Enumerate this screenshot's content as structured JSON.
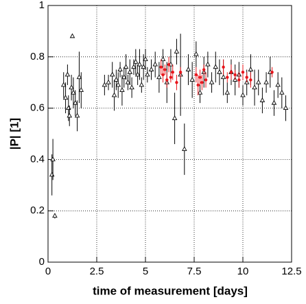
{
  "chart_data": {
    "type": "scatter",
    "xlabel": "time of measurement [days]",
    "ylabel": "|P| [1]",
    "xlim": [
      0,
      12.5
    ],
    "ylim": [
      0,
      1
    ],
    "xticks": [
      0,
      2.5,
      5,
      7.5,
      10,
      12.5
    ],
    "yticks": [
      0,
      0.2,
      0.4,
      0.6,
      0.8,
      1
    ],
    "grid": true,
    "series": [
      {
        "color": "#000000",
        "marker": "open-triangle",
        "x": [
          0.2,
          0.25,
          0.35,
          0.8,
          0.9,
          1.0,
          1.05,
          1.1,
          1.2,
          1.25,
          1.3,
          1.4,
          1.5,
          1.6,
          1.7,
          2.9,
          3.1,
          3.3,
          3.4,
          3.5,
          3.6,
          3.7,
          3.8,
          3.9,
          4.0,
          4.1,
          4.2,
          4.3,
          4.4,
          4.5,
          4.6,
          4.7,
          4.8,
          4.9,
          5.0,
          5.1,
          5.3,
          5.5,
          5.7,
          5.9,
          6.1,
          6.3,
          6.5,
          6.6,
          6.8,
          7.0,
          7.2,
          7.4,
          7.6,
          7.8,
          8.0,
          8.2,
          8.4,
          8.6,
          8.8,
          9.0,
          9.2,
          9.4,
          9.6,
          9.8,
          10.0,
          10.2,
          10.4,
          10.6,
          10.8,
          11.0,
          11.2,
          11.4,
          11.6,
          11.8,
          12.0,
          12.2
        ],
        "values": [
          0.34,
          0.4,
          0.18,
          0.69,
          0.64,
          0.73,
          0.6,
          0.57,
          0.68,
          0.88,
          0.66,
          0.62,
          0.57,
          0.72,
          0.67,
          0.69,
          0.7,
          0.73,
          0.65,
          0.71,
          0.69,
          0.75,
          0.67,
          0.72,
          0.76,
          0.7,
          0.74,
          0.68,
          0.76,
          0.78,
          0.73,
          0.77,
          0.69,
          0.76,
          0.79,
          0.73,
          0.75,
          0.77,
          0.72,
          0.79,
          0.7,
          0.77,
          0.56,
          0.82,
          0.73,
          0.44,
          0.75,
          0.71,
          0.81,
          0.66,
          0.74,
          0.77,
          0.7,
          0.76,
          0.74,
          0.72,
          0.66,
          0.74,
          0.71,
          0.73,
          0.65,
          0.7,
          0.75,
          0.68,
          0.7,
          0.63,
          0.7,
          0.74,
          0.62,
          0.69,
          0.66,
          0.6
        ],
        "errors": [
          0.08,
          0.08,
          0.01,
          0.05,
          0.06,
          0.04,
          0.05,
          0.04,
          0.05,
          0,
          0.06,
          0.05,
          0.06,
          0.1,
          0.07,
          0.04,
          0.03,
          0.05,
          0.06,
          0.04,
          0.05,
          0.03,
          0.06,
          0.04,
          0.05,
          0.03,
          0.05,
          0.04,
          0.03,
          0.05,
          0.04,
          0.06,
          0.03,
          0.05,
          0.04,
          0.03,
          0.04,
          0.05,
          0.06,
          0.04,
          0.08,
          0.06,
          0.1,
          0.05,
          0.16,
          0.1,
          0.06,
          0.07,
          0.05,
          0.04,
          0.06,
          0.05,
          0.04,
          0.06,
          0.05,
          0.07,
          0.04,
          0.05,
          0.06,
          0.05,
          0.04,
          0.05,
          0.06,
          0.07,
          0.05,
          0.05,
          0.04,
          0.06,
          0.05,
          0.05,
          0.06,
          0.05
        ]
      },
      {
        "color": "#e8141a",
        "marker": "filled-dot",
        "x": [
          5.8,
          5.9,
          6.0,
          6.1,
          6.2,
          6.3,
          6.4,
          6.6,
          6.8,
          7.6,
          7.7,
          7.8,
          7.9,
          8.0,
          8.1,
          9.0,
          9.2,
          9.4,
          9.6,
          9.8,
          10.0,
          10.2,
          10.4,
          11.5
        ],
        "values": [
          0.76,
          0.73,
          0.75,
          0.71,
          0.77,
          0.72,
          0.74,
          0.7,
          0.74,
          0.73,
          0.69,
          0.72,
          0.7,
          0.75,
          0.71,
          0.76,
          0.72,
          0.74,
          0.73,
          0.71,
          0.74,
          0.72,
          0.71,
          0.74
        ],
        "errors": [
          0.03,
          0.03,
          0.02,
          0.03,
          0.03,
          0.02,
          0.03,
          0.03,
          0.02,
          0.03,
          0.04,
          0.03,
          0.03,
          0.02,
          0.03,
          0.03,
          0.02,
          0.03,
          0.02,
          0.03,
          0.03,
          0.02,
          0.03,
          0.02
        ]
      }
    ]
  }
}
